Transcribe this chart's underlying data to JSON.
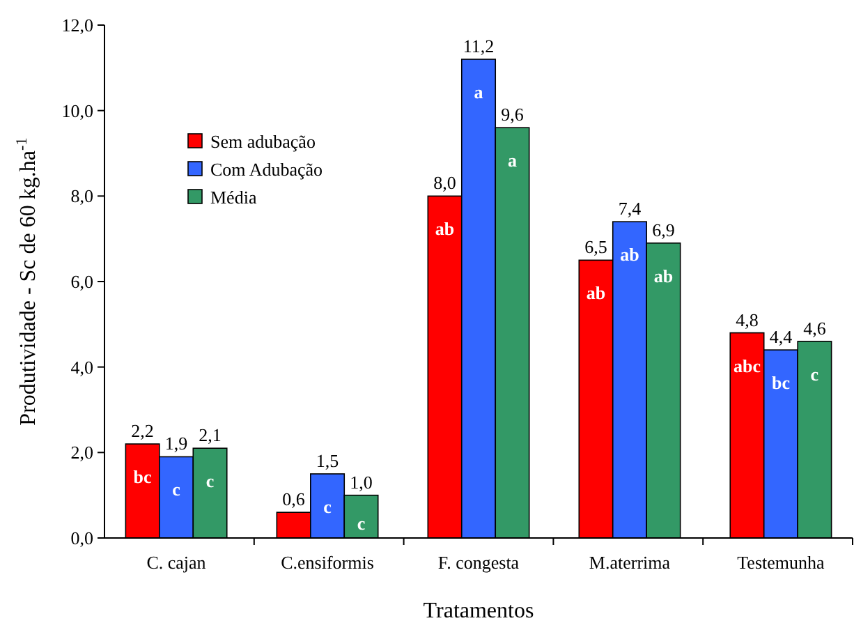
{
  "chart_data": {
    "type": "bar",
    "xlabel": "Tratamentos",
    "ylabel": "Produtividade - Sc de 60 kg.ha$^{-1}$",
    "categories": [
      "C. cajan",
      "C.ensiformis",
      "F. congesta",
      "M.aterrima",
      "Testemunha"
    ],
    "series": [
      {
        "name": "Sem adubação",
        "color": "#ff0000",
        "values": [
          2.2,
          0.6,
          8.0,
          6.5,
          4.8
        ],
        "value_labels": [
          "2,2",
          "0,6",
          "8,0",
          "6,5",
          "4,8"
        ]
      },
      {
        "name": "Com Adubação",
        "color": "#3366ff",
        "values": [
          1.9,
          1.5,
          11.2,
          7.4,
          4.4
        ],
        "value_labels": [
          "1,9",
          "1,5",
          "11,2",
          "7,4",
          "4,4"
        ]
      },
      {
        "name": "Média",
        "color": "#339966",
        "values": [
          2.1,
          1.0,
          9.6,
          6.9,
          4.6
        ],
        "value_labels": [
          "2,1",
          "1,0",
          "9,6",
          "6,9",
          "4,6"
        ]
      }
    ],
    "ylim": [
      0,
      12
    ],
    "yticks": [
      {
        "value": 0,
        "label": "0,0"
      },
      {
        "value": 2,
        "label": "2,0"
      },
      {
        "value": 4,
        "label": "4,0"
      },
      {
        "value": 6,
        "label": "6,0"
      },
      {
        "value": 8,
        "label": "8,0"
      },
      {
        "value": 10,
        "label": "10,0"
      },
      {
        "value": 12,
        "label": "12,0"
      }
    ],
    "legend": "top left",
    "grid": false,
    "annotations": [
      "bc",
      "c",
      "c",
      "c",
      "c",
      "ab",
      "a",
      "a",
      "ab",
      "ab",
      "ab",
      "abc",
      "bc",
      "c"
    ]
  }
}
